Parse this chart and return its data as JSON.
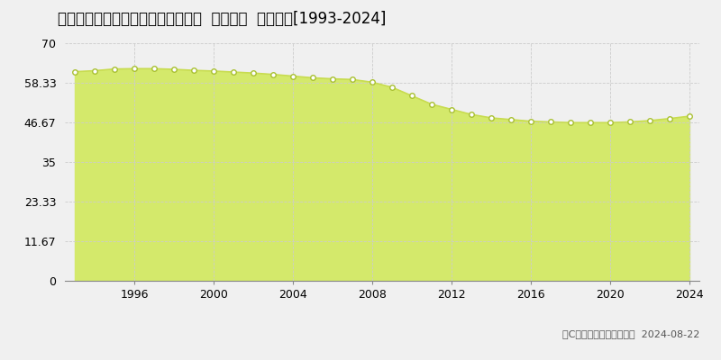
{
  "title": "鹿児島県鹿児島市武３丁目２２番８  地価公示  地価推移[1993-2024]",
  "years": [
    1993,
    1994,
    1995,
    1996,
    1997,
    1998,
    1999,
    2000,
    2001,
    2002,
    2003,
    2004,
    2005,
    2006,
    2007,
    2008,
    2009,
    2010,
    2011,
    2012,
    2013,
    2014,
    2015,
    2016,
    2017,
    2018,
    2019,
    2020,
    2021,
    2022,
    2023,
    2024
  ],
  "values": [
    61.6,
    61.9,
    62.4,
    62.5,
    62.5,
    62.3,
    62.0,
    61.8,
    61.5,
    61.2,
    60.8,
    60.3,
    59.8,
    59.5,
    59.3,
    58.5,
    57.0,
    54.5,
    52.0,
    50.5,
    49.0,
    48.0,
    47.5,
    47.0,
    46.8,
    46.6,
    46.6,
    46.6,
    46.8,
    47.2,
    47.8,
    48.5
  ],
  "yticks": [
    0,
    11.67,
    23.33,
    35,
    46.67,
    58.33,
    70
  ],
  "ytick_labels": [
    "0",
    "11.67",
    "23.33",
    "35",
    "46.67",
    "58.33",
    "70"
  ],
  "xticks": [
    1996,
    2000,
    2004,
    2008,
    2012,
    2016,
    2020,
    2024
  ],
  "xtick_labels": [
    "1996",
    "2000",
    "2004",
    "2008",
    "2012",
    "2016",
    "2020",
    "2024"
  ],
  "ylim": [
    0,
    70
  ],
  "xlim": [
    1992.5,
    2024.5
  ],
  "fill_color": "#d4e96b",
  "line_color": "#c8dc50",
  "marker_color": "#ffffff",
  "marker_edge_color": "#a8c030",
  "grid_color": "#cccccc",
  "background_color": "#f0f0f0",
  "plot_bg_color": "#f0f0f0",
  "legend_color": "#c8dc50",
  "copyright_text": "（C）土地価格ドットコム  2024-08-22",
  "title_fontsize": 12,
  "tick_fontsize": 9,
  "legend_fontsize": 9
}
